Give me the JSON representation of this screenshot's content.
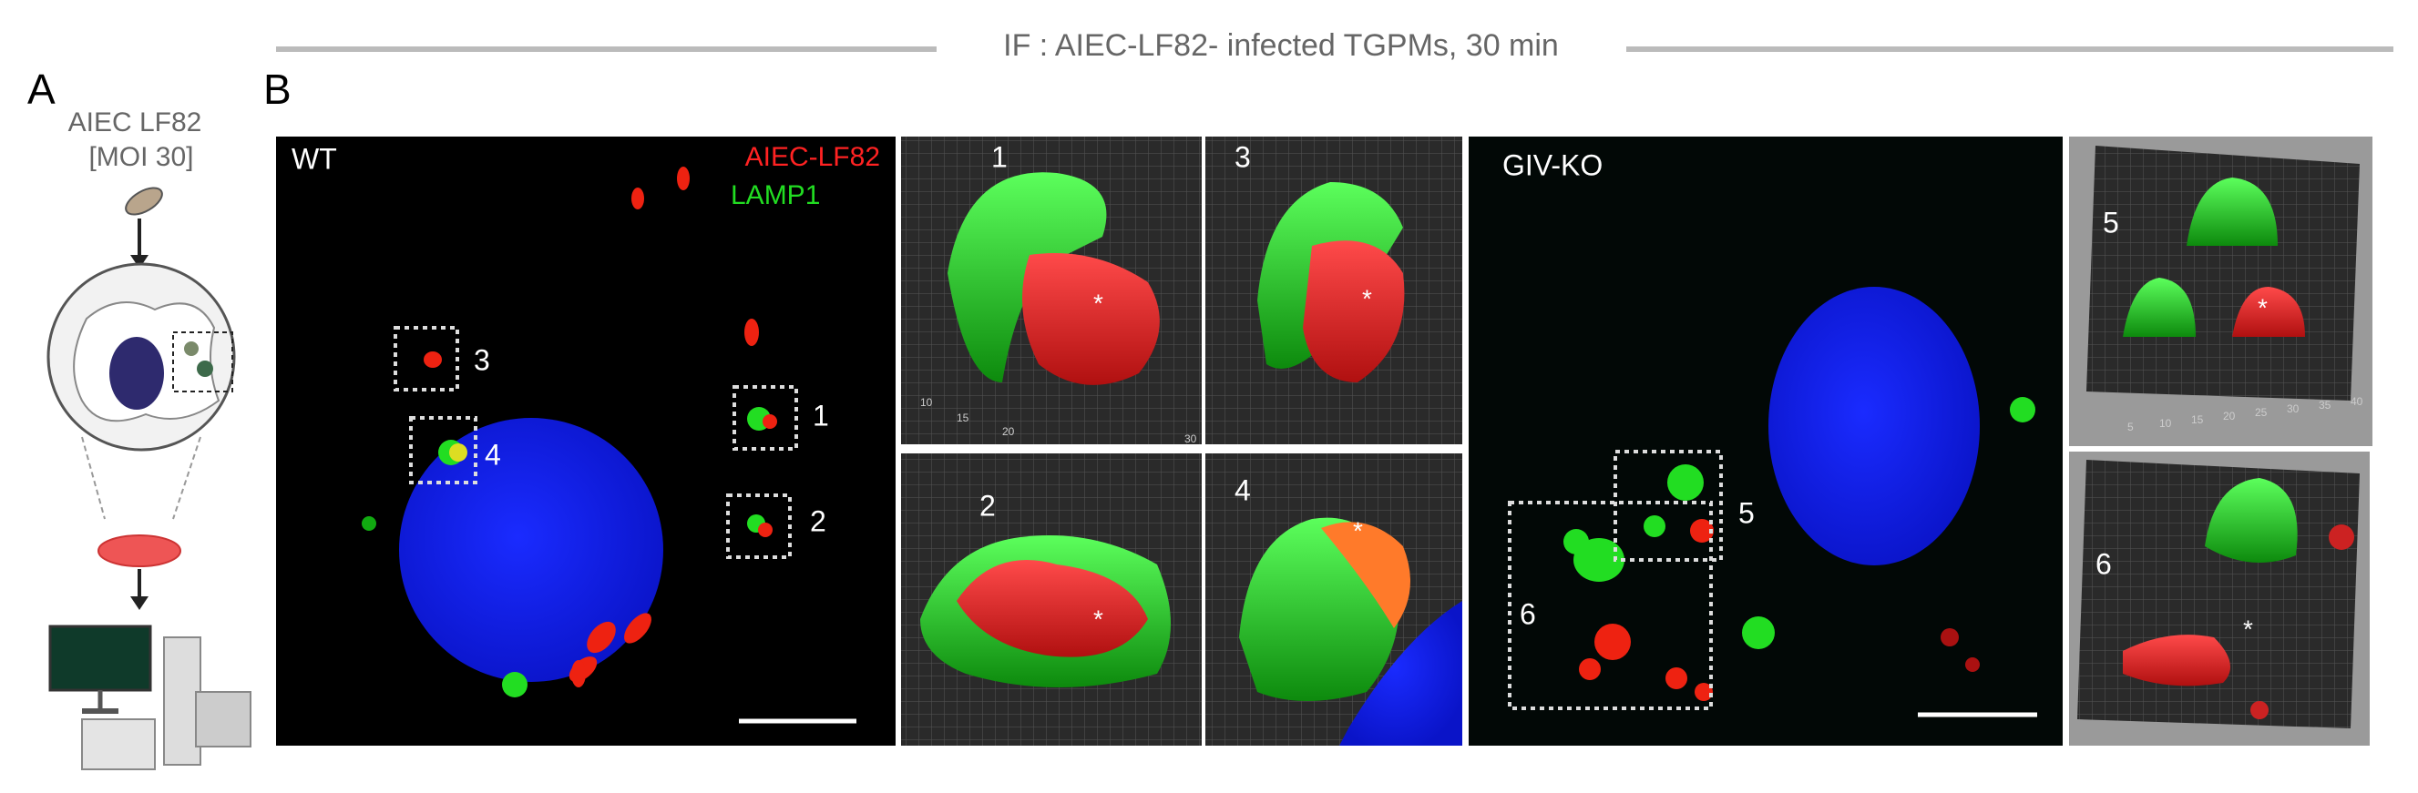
{
  "header": {
    "title": "IF : AIEC-LF82- infected TGPMs, 30 min"
  },
  "panel_a": {
    "label": "A",
    "strain": "AIEC LF82",
    "moi": "[MOI 30]"
  },
  "panel_b": {
    "label": "B",
    "wt": {
      "label": "WT",
      "legend": [
        "AIEC-LF82",
        "LAMP1"
      ],
      "boxes": [
        "1",
        "2",
        "3",
        "4"
      ]
    },
    "wt_insets": [
      {
        "label": "1",
        "marker": "*",
        "axis": [
          "10",
          "15",
          "20",
          "30"
        ]
      },
      {
        "label": "3",
        "marker": "*"
      },
      {
        "label": "2",
        "marker": "*"
      },
      {
        "label": "4",
        "marker": "*"
      }
    ],
    "ko": {
      "label": "GIV-KO",
      "boxes": [
        "5",
        "6"
      ]
    },
    "ko_insets": [
      {
        "label": "5",
        "marker": "*",
        "axis": [
          "5",
          "10",
          "15",
          "20",
          "25",
          "30",
          "35",
          "40"
        ]
      },
      {
        "label": "6",
        "marker": "*"
      }
    ]
  }
}
